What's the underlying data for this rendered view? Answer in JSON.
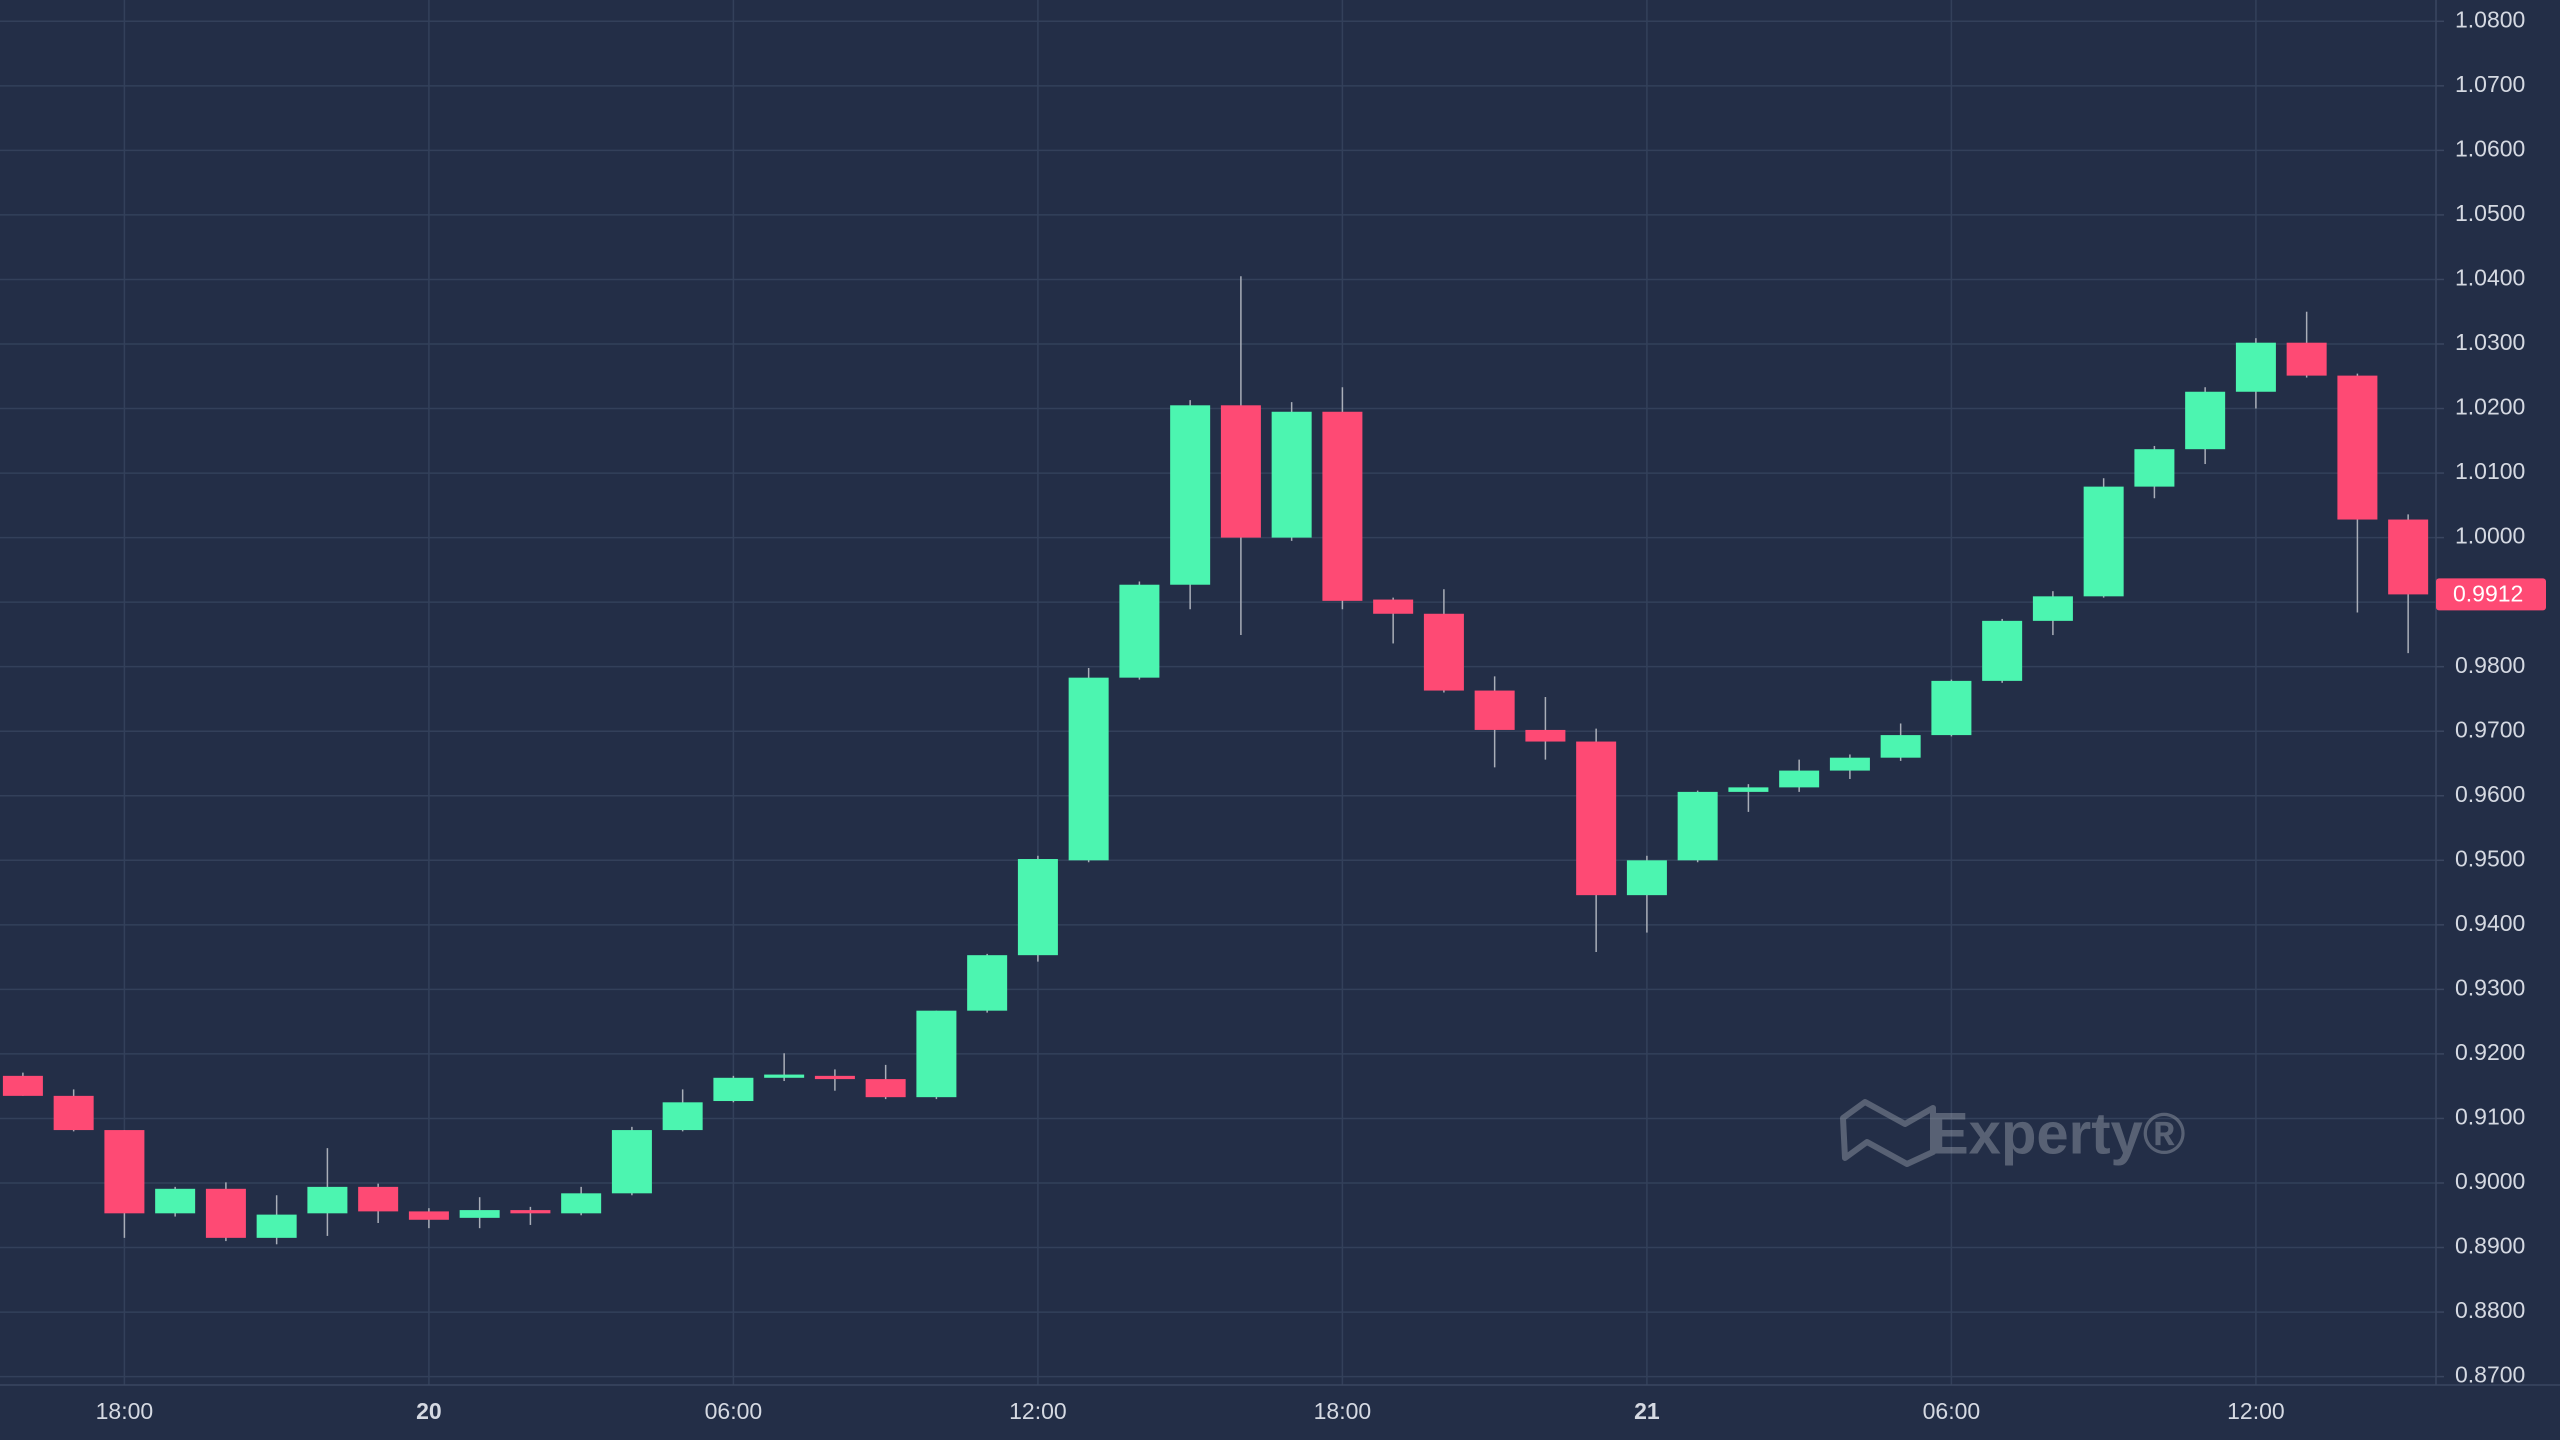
{
  "chart_data": {
    "type": "candlestick",
    "categories": [
      null,
      null,
      "18:00",
      null,
      null,
      null,
      null,
      null,
      "20",
      null,
      null,
      null,
      null,
      null,
      "06:00",
      null,
      null,
      null,
      null,
      null,
      "12:00",
      null,
      null,
      null,
      null,
      null,
      "18:00",
      null,
      null,
      null,
      null,
      null,
      "21",
      null,
      null,
      null,
      null,
      null,
      "06:00",
      null,
      null,
      null,
      null,
      null,
      "12:00",
      null,
      null,
      null
    ],
    "open": [
      0.9166,
      0.9135,
      0.9082,
      0.8953,
      0.8991,
      0.8915,
      0.8953,
      0.8994,
      0.8956,
      0.8946,
      0.8958,
      0.8953,
      0.8984,
      0.9082,
      0.9127,
      0.9163,
      0.9166,
      0.9161,
      0.9133,
      0.9267,
      0.9353,
      0.95,
      0.9783,
      0.9927,
      1.0205,
      1.0,
      1.0195,
      0.9904,
      0.9882,
      0.9763,
      0.9702,
      0.9684,
      0.9446,
      0.95,
      0.9606,
      0.9613,
      0.9639,
      0.9659,
      0.9694,
      0.9778,
      0.9871,
      0.9909,
      1.0079,
      1.0137,
      1.0226,
      1.0302,
      1.0251,
      1.0028
    ],
    "high": [
      0.9171,
      0.9145,
      0.9082,
      0.8994,
      0.9001,
      0.8981,
      0.9054,
      0.8999,
      0.8961,
      0.8978,
      0.8963,
      0.8994,
      0.9087,
      0.9145,
      0.9166,
      0.9201,
      0.9176,
      0.9183,
      0.9267,
      0.9355,
      0.9507,
      0.9798,
      0.9932,
      1.0213,
      1.0405,
      1.021,
      1.0233,
      0.9907,
      0.992,
      0.9785,
      0.9753,
      0.9704,
      0.9507,
      0.9608,
      0.9618,
      0.9656,
      0.9664,
      0.9712,
      0.978,
      0.9874,
      0.9917,
      1.0092,
      1.0142,
      1.0233,
      1.0309,
      1.035,
      1.0254,
      1.0036
    ],
    "low": [
      0.9135,
      0.908,
      0.8915,
      0.8948,
      0.891,
      0.8905,
      0.8918,
      0.8938,
      0.893,
      0.893,
      0.8935,
      0.895,
      0.8981,
      0.908,
      0.9125,
      0.9158,
      0.9143,
      0.913,
      0.913,
      0.9264,
      0.9343,
      0.9497,
      0.978,
      0.9889,
      0.9849,
      0.9995,
      0.9889,
      0.9836,
      0.976,
      0.9644,
      0.9656,
      0.9358,
      0.9388,
      0.9497,
      0.9575,
      0.9606,
      0.9626,
      0.9654,
      0.9692,
      0.9775,
      0.9849,
      0.9907,
      1.0061,
      1.0114,
      1.02,
      1.0248,
      0.9884,
      0.9821
    ],
    "close": [
      0.9135,
      0.9082,
      0.8953,
      0.8991,
      0.8915,
      0.8951,
      0.8994,
      0.8956,
      0.8943,
      0.8958,
      0.8953,
      0.8984,
      0.9082,
      0.9125,
      0.9163,
      0.9168,
      0.9161,
      0.9133,
      0.9267,
      0.9353,
      0.9502,
      0.9783,
      0.9927,
      1.0205,
      1.0,
      1.0195,
      0.9902,
      0.9882,
      0.9763,
      0.9702,
      0.9684,
      0.9446,
      0.95,
      0.9606,
      0.9613,
      0.9639,
      0.9659,
      0.9694,
      0.9778,
      0.9871,
      0.9909,
      1.0079,
      1.0137,
      1.0226,
      1.0302,
      1.0251,
      1.0028,
      0.9912
    ],
    "up_color": "#4cf5b0",
    "down_color": "#fe4a74",
    "ylim": [
      0.8687,
      1.0833
    ],
    "yticks": [
      {
        "value": 0.87,
        "label": "0.8700"
      },
      {
        "value": 0.88,
        "label": "0.8800"
      },
      {
        "value": 0.89,
        "label": "0.8900"
      },
      {
        "value": 0.9,
        "label": "0.9000"
      },
      {
        "value": 0.91,
        "label": "0.9100"
      },
      {
        "value": 0.92,
        "label": "0.9200"
      },
      {
        "value": 0.93,
        "label": "0.9300"
      },
      {
        "value": 0.94,
        "label": "0.9400"
      },
      {
        "value": 0.95,
        "label": "0.9500"
      },
      {
        "value": 0.96,
        "label": "0.9600"
      },
      {
        "value": 0.97,
        "label": "0.9700"
      },
      {
        "value": 0.98,
        "label": "0.9800"
      },
      {
        "value": 0.99,
        "label": "0.9900"
      },
      {
        "value": 1.0,
        "label": "1.0000"
      },
      {
        "value": 1.01,
        "label": "1.0100"
      },
      {
        "value": 1.02,
        "label": "1.0200"
      },
      {
        "value": 1.03,
        "label": "1.0300"
      },
      {
        "value": 1.04,
        "label": "1.0400"
      },
      {
        "value": 1.05,
        "label": "1.0500"
      },
      {
        "value": 1.06,
        "label": "1.0600"
      },
      {
        "value": 1.07,
        "label": "1.0700"
      },
      {
        "value": 1.08,
        "label": "1.0800"
      }
    ],
    "price_label": {
      "value": 0.9912,
      "label": "0.9912"
    },
    "grid": true,
    "watermark": "Experty®"
  }
}
